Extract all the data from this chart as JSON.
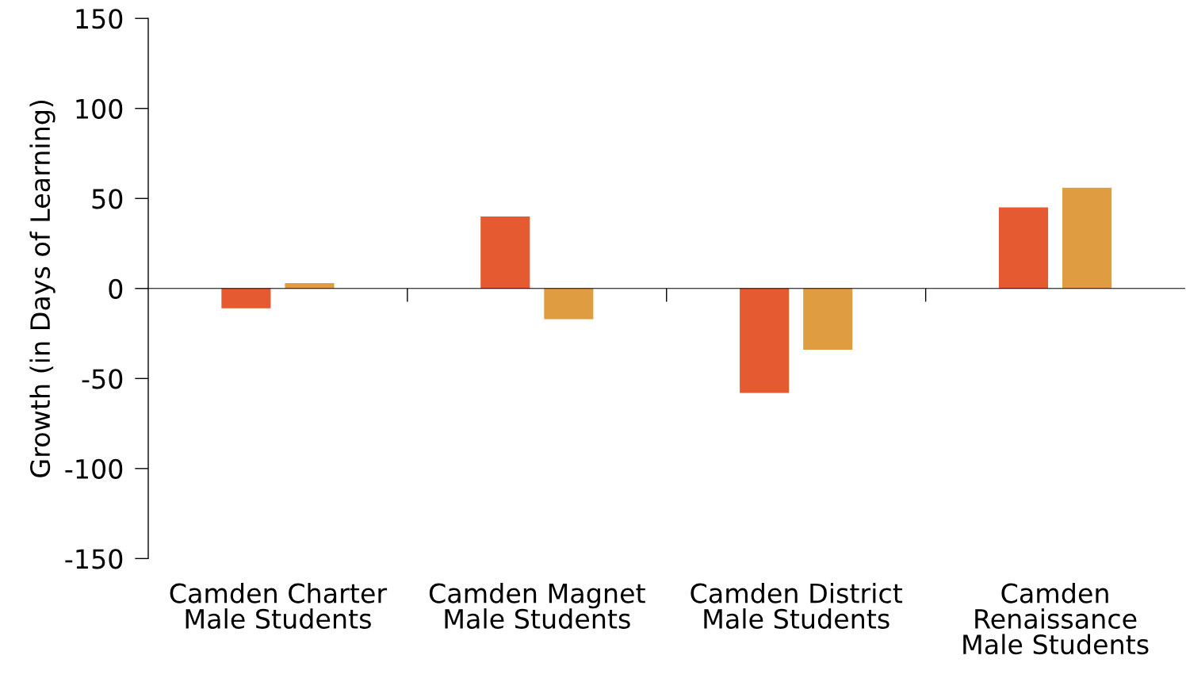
{
  "chart_data": {
    "type": "bar",
    "ylabel": "Growth (in Days of Learning)",
    "categories": [
      "Camden Charter\nMale Students",
      "Camden Magnet\nMale Students",
      "Camden District\nMale Students",
      "Camden\nRenaissance\nMale Students"
    ],
    "series": [
      {
        "color": "#e55a31",
        "values": [
          -11,
          40,
          -58,
          45
        ]
      },
      {
        "color": "#e09c40",
        "values": [
          3,
          -17,
          -34,
          56
        ]
      }
    ],
    "ylim": [
      -150,
      150
    ],
    "yticks": [
      -150,
      -100,
      -50,
      0,
      50,
      100,
      150
    ],
    "legend": false
  }
}
